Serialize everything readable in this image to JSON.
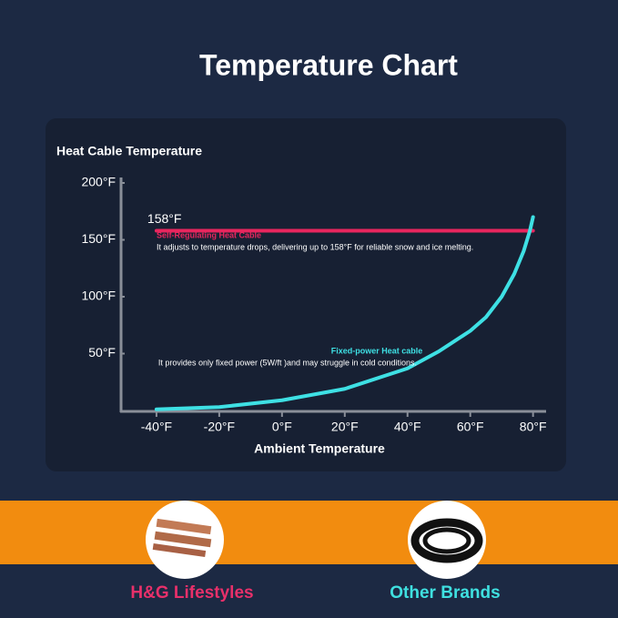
{
  "title": "Temperature Chart",
  "chart_data": {
    "type": "line",
    "y_label": "Heat Cable Temperature",
    "x_label": "Ambient Temperature",
    "xlim": [
      -51,
      83
    ],
    "ylim": [
      0,
      200
    ],
    "xticks": [
      {
        "value": -40,
        "label": "-40°F"
      },
      {
        "value": -20,
        "label": "-20°F"
      },
      {
        "value": 0,
        "label": "0°F"
      },
      {
        "value": 20,
        "label": "20°F"
      },
      {
        "value": 40,
        "label": "40°F"
      },
      {
        "value": 60,
        "label": "60°F"
      },
      {
        "value": 80,
        "label": "80°F"
      }
    ],
    "yticks": [
      {
        "value": 50,
        "label": "50°F"
      },
      {
        "value": 100,
        "label": "100°F"
      },
      {
        "value": 150,
        "label": "150°F"
      },
      {
        "value": 200,
        "label": "200°F"
      }
    ],
    "series": [
      {
        "name": "Self-Regulating Heat Cable",
        "color": "#e8265e",
        "description": "It adjusts to temperature drops, delivering up to 158°F for reliable snow and ice melting.",
        "x": [
          -40,
          80
        ],
        "values": [
          158,
          158
        ],
        "value_labels": [
          "158°F",
          null
        ]
      },
      {
        "name": "Fixed-power Heat cable",
        "color": "#3ee0e4",
        "description": "It provides only fixed power (5W/ft )and may struggle in cold conditions.",
        "x": [
          -40,
          -20,
          0,
          20,
          40,
          50,
          60,
          65,
          70,
          74,
          77,
          79,
          80
        ],
        "values": [
          1,
          3,
          9,
          19,
          37,
          52,
          70,
          82,
          100,
          120,
          140,
          158,
          170
        ]
      }
    ]
  },
  "comparison": {
    "left": "H&G Lifestyles",
    "right": "Other Brands"
  }
}
